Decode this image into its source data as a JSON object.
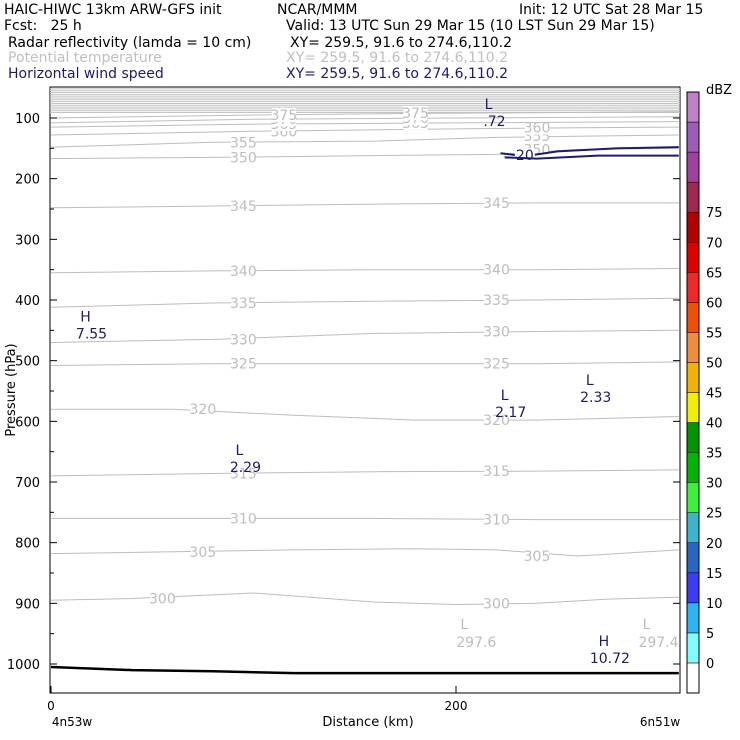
{
  "header": {
    "model": "HAIC-HIWC 13km ARW-GFS init",
    "org": "NCAR/MMM",
    "init": "Init: 12 UTC Sat 28 Mar 15",
    "fcst": "Fcst:   25 h",
    "valid": "Valid: 13 UTC Sun 29 Mar 15 (10 LST Sun 29 Mar 15)",
    "fields": [
      {
        "name": "Radar reflectivity (lamda = 10 cm)",
        "xy": "XY= 259.5, 91.6 to 274.6,110.2",
        "color": "#000000"
      },
      {
        "name": "Potential temperature",
        "xy": "XY= 259.5, 91.6 to 274.6,110.2",
        "color": "#c0c0c0"
      },
      {
        "name": "Horizontal wind speed",
        "xy": "XY= 259.5, 91.6 to 274.6,110.2",
        "color": "#1a1a7a"
      }
    ]
  },
  "chart_data": {
    "type": "line",
    "title": "",
    "xlabel": "Distance (km)",
    "ylabel": "Pressure (hPa)",
    "xlim": [
      0,
      310
    ],
    "ylim": [
      50,
      1050
    ],
    "x_ticks": [
      0,
      200
    ],
    "x_endpoint_labels": [
      "4n53w",
      "6n51w"
    ],
    "y_ticks": [
      100,
      200,
      300,
      400,
      500,
      600,
      700,
      800,
      900,
      1000
    ],
    "grid": false,
    "colorbar": {
      "unit": "dBZ",
      "levels": [
        0,
        5,
        10,
        15,
        20,
        25,
        30,
        35,
        40,
        45,
        50,
        55,
        60,
        65,
        70,
        75
      ],
      "colors": [
        "#ffffff",
        "#7ffcfc",
        "#2cb4f4",
        "#3c3cf4",
        "#2a64c4",
        "#3cb4cc",
        "#3cf03c",
        "#00b400",
        "#009600",
        "#f0f000",
        "#f0b400",
        "#f08c3c",
        "#f05000",
        "#f02828",
        "#e00000",
        "#b40000",
        "#a02850",
        "#a040a0",
        "#9c5cb8",
        "#c080c8"
      ]
    },
    "theta_contours": [
      {
        "label": "300",
        "points": [
          [
            0,
            895
          ],
          [
            40,
            892
          ],
          [
            100,
            883
          ],
          [
            160,
            898
          ],
          [
            200,
            902
          ],
          [
            240,
            900
          ],
          [
            275,
            893
          ],
          [
            310,
            890
          ]
        ]
      },
      {
        "label": "305",
        "points": [
          [
            0,
            818
          ],
          [
            60,
            815
          ],
          [
            120,
            812
          ],
          [
            180,
            810
          ],
          [
            220,
            812
          ],
          [
            260,
            822
          ],
          [
            310,
            812
          ]
        ]
      },
      {
        "label": "310",
        "points": [
          [
            0,
            760
          ],
          [
            80,
            760
          ],
          [
            160,
            760
          ],
          [
            240,
            762
          ],
          [
            310,
            762
          ]
        ]
      },
      {
        "label": "315",
        "points": [
          [
            0,
            690
          ],
          [
            80,
            686
          ],
          [
            160,
            683
          ],
          [
            240,
            682
          ],
          [
            310,
            680
          ]
        ]
      },
      {
        "label": "320",
        "points": [
          [
            0,
            580
          ],
          [
            60,
            580
          ],
          [
            120,
            590
          ],
          [
            180,
            598
          ],
          [
            240,
            598
          ],
          [
            310,
            592
          ]
        ]
      },
      {
        "label": "325",
        "points": [
          [
            0,
            508
          ],
          [
            80,
            505
          ],
          [
            160,
            505
          ],
          [
            240,
            505
          ],
          [
            310,
            502
          ]
        ]
      },
      {
        "label": "330",
        "points": [
          [
            0,
            470
          ],
          [
            80,
            465
          ],
          [
            160,
            455
          ],
          [
            240,
            452
          ],
          [
            310,
            450
          ]
        ]
      },
      {
        "label": "335",
        "points": [
          [
            0,
            412
          ],
          [
            80,
            405
          ],
          [
            160,
            402
          ],
          [
            240,
            400
          ],
          [
            310,
            397
          ]
        ]
      },
      {
        "label": "340",
        "points": [
          [
            0,
            355
          ],
          [
            80,
            352
          ],
          [
            160,
            350
          ],
          [
            240,
            350
          ],
          [
            310,
            348
          ]
        ]
      },
      {
        "label": "345",
        "points": [
          [
            0,
            248
          ],
          [
            80,
            245
          ],
          [
            160,
            242
          ],
          [
            240,
            240
          ],
          [
            310,
            240
          ]
        ]
      },
      {
        "label": "350",
        "points": [
          [
            0,
            167
          ],
          [
            80,
            165
          ],
          [
            160,
            162
          ],
          [
            220,
            160
          ],
          [
            260,
            152
          ],
          [
            310,
            150
          ]
        ]
      },
      {
        "label": "355",
        "points": [
          [
            0,
            148
          ],
          [
            80,
            140
          ],
          [
            160,
            138
          ],
          [
            220,
            132
          ],
          [
            260,
            130
          ],
          [
            310,
            128
          ]
        ]
      },
      {
        "label": "360",
        "points": [
          [
            0,
            128
          ],
          [
            100,
            122
          ],
          [
            200,
            118
          ],
          [
            260,
            116
          ],
          [
            310,
            115
          ]
        ]
      },
      {
        "label": "365",
        "points": [
          [
            0,
            115
          ],
          [
            100,
            110
          ],
          [
            200,
            108
          ],
          [
            310,
            106
          ]
        ]
      },
      {
        "label": "370",
        "points": [
          [
            0,
            108
          ],
          [
            100,
            102
          ],
          [
            200,
            100
          ],
          [
            310,
            98
          ]
        ]
      },
      {
        "label": "375",
        "points": [
          [
            0,
            100
          ],
          [
            100,
            95
          ],
          [
            200,
            92
          ],
          [
            310,
            90
          ]
        ]
      }
    ],
    "wind_contours": [
      {
        "label": "20",
        "points": [
          [
            222,
            158
          ],
          [
            234,
            163
          ],
          [
            250,
            155
          ],
          [
            280,
            150
          ],
          [
            310,
            148
          ]
        ]
      },
      {
        "label": "",
        "points": [
          [
            224,
            165
          ],
          [
            240,
            167
          ],
          [
            270,
            162
          ],
          [
            310,
            162
          ]
        ]
      }
    ],
    "terrain": {
      "points": [
        [
          0,
          1005
        ],
        [
          40,
          1010
        ],
        [
          80,
          1012
        ],
        [
          120,
          1015
        ],
        [
          200,
          1015
        ],
        [
          310,
          1015
        ]
      ]
    },
    "theta_extrema": [
      {
        "type": "L",
        "value": "297.6",
        "x": 210,
        "p": 1015
      },
      {
        "type": "L",
        "value": "297.4",
        "x": 300,
        "p": 1015
      }
    ],
    "wind_extrema": [
      {
        "type": "H",
        "value": "7.55",
        "x": 20,
        "p": 455
      },
      {
        "type": "L",
        "value": "2.29",
        "x": 96,
        "p": 675
      },
      {
        "type": "L",
        "value": "2.17",
        "x": 227,
        "p": 585
      },
      {
        "type": "L",
        "value": "2.33",
        "x": 269,
        "p": 560
      },
      {
        "type": "L",
        "value": ".72",
        "x": 219,
        "p": 105
      },
      {
        "type": "H",
        "value": "10.72",
        "x": 276,
        "p": 990
      }
    ]
  }
}
